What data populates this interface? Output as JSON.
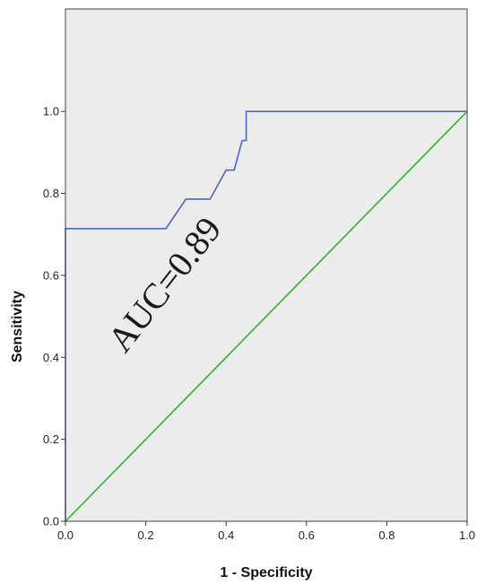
{
  "chart_data": {
    "type": "line",
    "title": "",
    "xlabel": "1 - Specificity",
    "ylabel": "Sensitivity",
    "xlim": [
      0,
      1
    ],
    "ylim": [
      0,
      1.25
    ],
    "x_ticks": [
      0.0,
      0.2,
      0.4,
      0.6,
      0.8,
      1.0
    ],
    "y_ticks": [
      0.0,
      0.2,
      0.4,
      0.6,
      0.8,
      1.0
    ],
    "x_tick_labels": [
      "0.0",
      "0.2",
      "0.4",
      "0.6",
      "0.8",
      "1.0"
    ],
    "y_tick_labels": [
      "0.0",
      "0.2",
      "0.4",
      "0.6",
      "0.8",
      "1.0"
    ],
    "grid": false,
    "background_color": "#ececec",
    "series": [
      {
        "color": "#4a68b8",
        "x": [
          0,
          0,
          0.25,
          0.3,
          0.36,
          0.36,
          0.4,
          0.4,
          0.42,
          0.43,
          0.44,
          0.44,
          0.45,
          0.45,
          1.0
        ],
        "y": [
          0,
          0.714,
          0.714,
          0.786,
          0.786,
          0.786,
          0.857,
          0.857,
          0.857,
          0.893,
          0.929,
          0.929,
          0.929,
          1.0,
          1.0
        ]
      },
      {
        "color": "#2db52d",
        "x": [
          0,
          1
        ],
        "y": [
          0,
          1
        ]
      }
    ],
    "annotations": [
      {
        "text": "AUC=0.89",
        "x": 0.27,
        "y": 0.56,
        "rotation": -52
      }
    ]
  }
}
